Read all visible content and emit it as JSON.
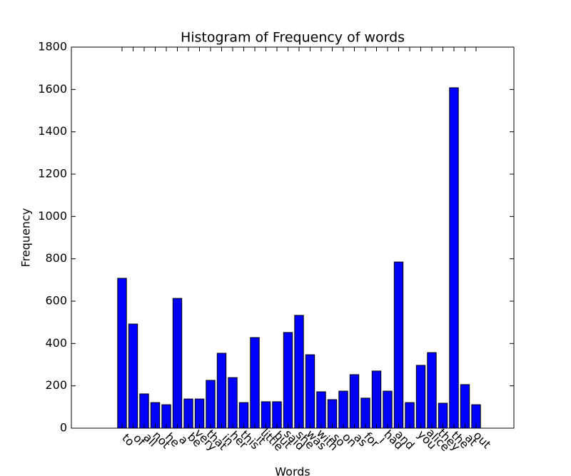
{
  "chart_data": {
    "type": "bar",
    "title": "Histogram of Frequency of words",
    "xlabel": "Words",
    "ylabel": "Frequency",
    "categories": [
      "to",
      "of",
      "all",
      "not",
      "he",
      "a",
      "be",
      "very",
      "that",
      "in",
      "her",
      "this",
      "it",
      "little",
      "but",
      "said",
      "she",
      "was",
      "with",
      "so",
      "on",
      "as",
      "for",
      "i",
      "had",
      "and",
      null,
      "you",
      "alice",
      "they",
      "the",
      "at",
      "out"
    ],
    "values": [
      708,
      492,
      162,
      121,
      111,
      613,
      138,
      138,
      226,
      354,
      239,
      121,
      428,
      125,
      125,
      452,
      533,
      347,
      172,
      135,
      175,
      253,
      142,
      270,
      175,
      785,
      121,
      297,
      357,
      118,
      1608,
      206,
      111
    ],
    "color": "#0000ff",
    "ylim": [
      0,
      1800
    ],
    "yticks": [
      0,
      200,
      400,
      600,
      800,
      1000,
      1200,
      1400,
      1600,
      1800
    ]
  }
}
